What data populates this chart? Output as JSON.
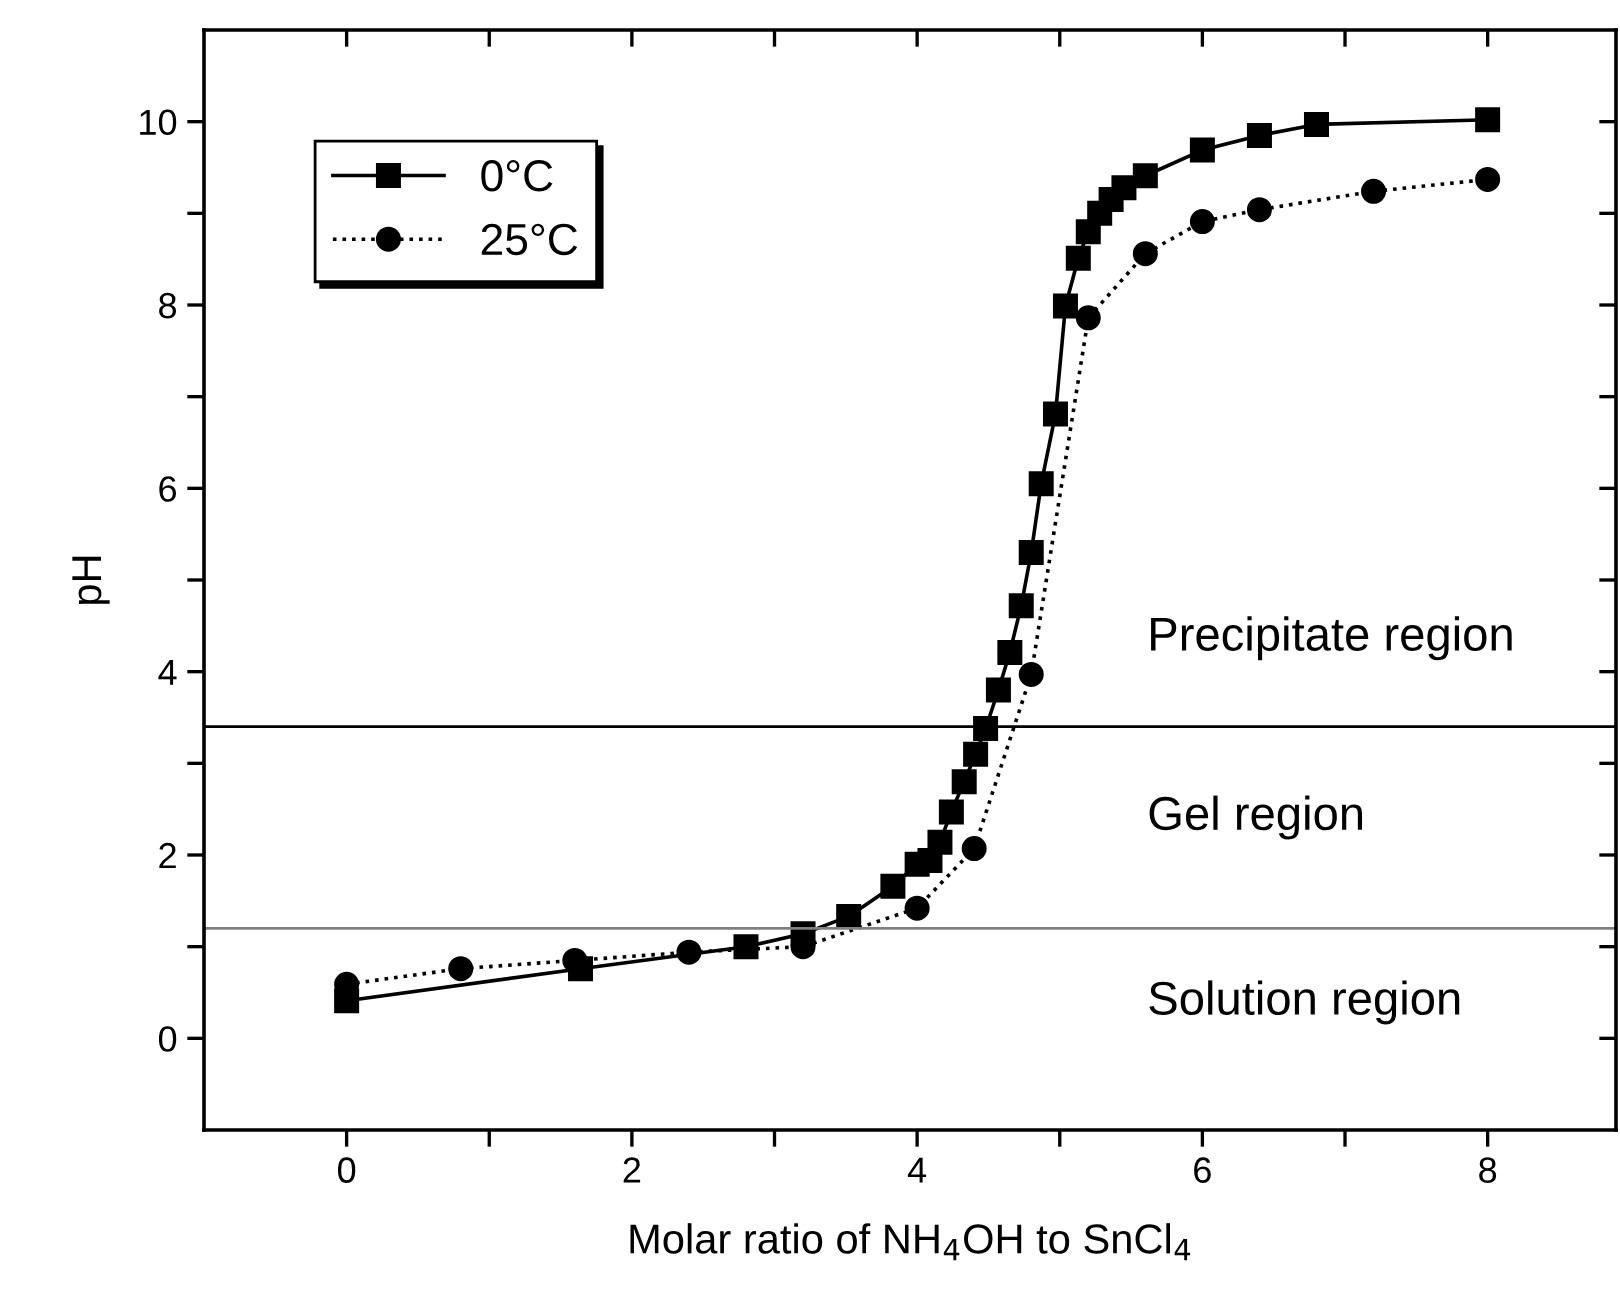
{
  "chart_data": {
    "type": "line",
    "xlabel": "Molar ratio of NH$_{4}$OH to SnCl$_{4}$",
    "ylabel": "pH",
    "xlim": [
      -1,
      8.9
    ],
    "ylim": [
      -1,
      11
    ],
    "xticks": [
      0,
      {
        "value": 1,
        "label": null
      },
      2,
      {
        "value": 3,
        "label": null
      },
      4,
      {
        "value": 5,
        "label": null
      },
      6,
      {
        "value": 7,
        "label": null
      },
      8
    ],
    "yticks": [
      0,
      {
        "value": 1,
        "label": null
      },
      2,
      {
        "value": 3,
        "label": null
      },
      4,
      {
        "value": 5,
        "label": null
      },
      6,
      {
        "value": 7,
        "label": null
      },
      8,
      {
        "value": 9,
        "label": null
      },
      10
    ],
    "grid": false,
    "legend": "top left",
    "series": [
      {
        "name": "0°C",
        "color": "#000000",
        "marker": "square",
        "line_style": "solid",
        "x": [
          0,
          1.64,
          2.8,
          3.2,
          3.52,
          3.83,
          4.0,
          4.09,
          4.16,
          4.24,
          4.33,
          4.41,
          4.48,
          4.57,
          4.65,
          4.73,
          4.8,
          4.87,
          4.97,
          5.04,
          5.13,
          5.2,
          5.28,
          5.36,
          5.45,
          5.6,
          6.0,
          6.4,
          6.8,
          8.0
        ],
        "values": [
          0.41,
          0.76,
          1.0,
          1.14,
          1.33,
          1.66,
          1.9,
          1.94,
          2.14,
          2.47,
          2.8,
          3.1,
          3.38,
          3.8,
          4.21,
          4.72,
          5.3,
          6.05,
          6.81,
          7.99,
          8.51,
          8.8,
          9.0,
          9.15,
          9.28,
          9.41,
          9.69,
          9.85,
          9.97,
          10.02
        ]
      },
      {
        "name": "25°C",
        "color": "#000000",
        "marker": "circle",
        "line_style": "dotted",
        "x": [
          0,
          0.8,
          1.6,
          2.4,
          3.2,
          4.0,
          4.4,
          4.8,
          5.2,
          5.6,
          6.0,
          6.4,
          7.2,
          8.0
        ],
        "values": [
          0.59,
          0.76,
          0.85,
          0.94,
          1.0,
          1.42,
          2.07,
          3.97,
          7.86,
          8.56,
          8.91,
          9.04,
          9.24,
          9.37
        ]
      }
    ],
    "ref_lines": [
      {
        "axis": "y",
        "value": 3.4,
        "color": "#000000"
      },
      {
        "axis": "y",
        "value": 1.2,
        "color": "#808080"
      }
    ],
    "annotations": [
      "Precipitate region",
      "Gel region",
      "Solution region"
    ]
  }
}
